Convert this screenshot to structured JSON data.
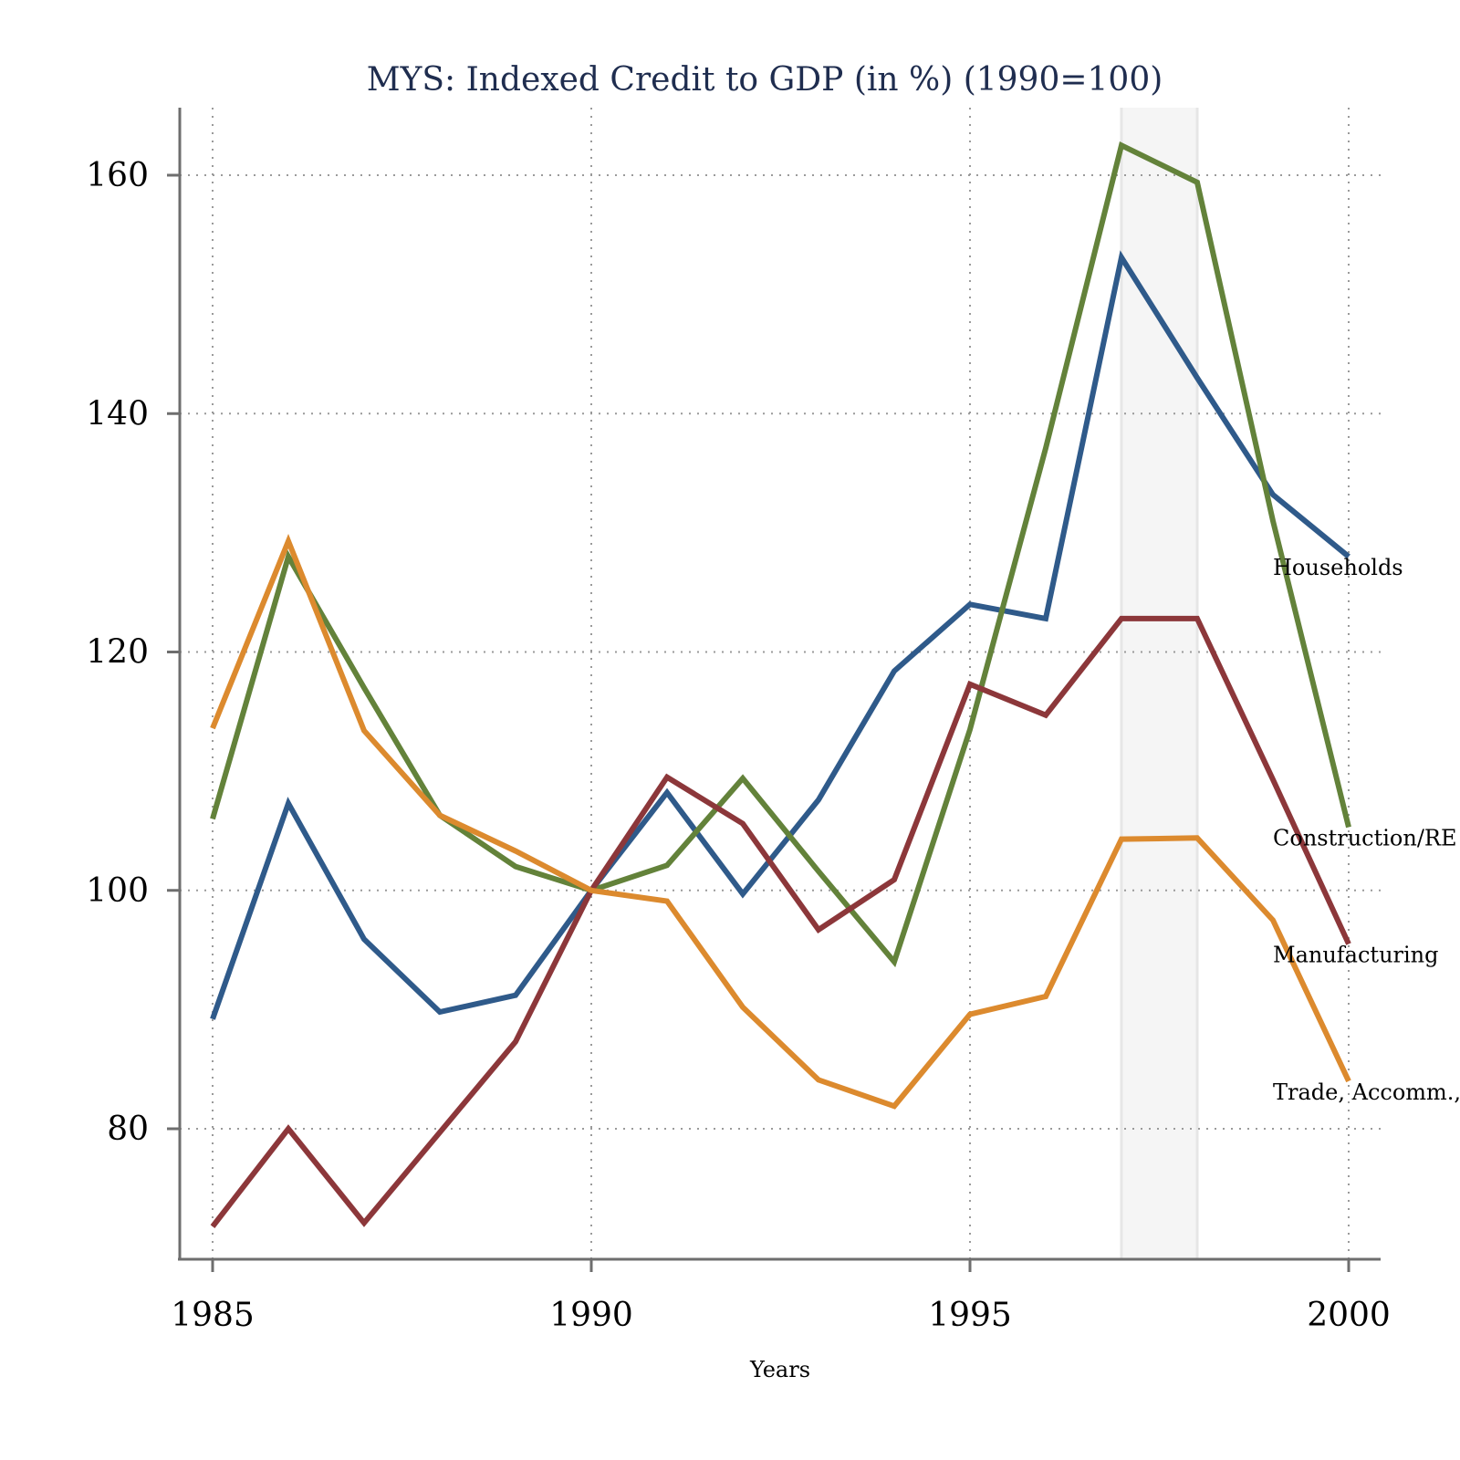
{
  "chart_data": {
    "type": "line",
    "title": "MYS: Indexed Credit to GDP (in %) (1990=100)",
    "xlabel": "Years",
    "ylabel": "",
    "xlim": [
      1984.58,
      2000.4
    ],
    "ylim": [
      68.9,
      165.1
    ],
    "x_ticks": [
      1985,
      1990,
      1995,
      2000
    ],
    "y_ticks": [
      80,
      100,
      120,
      140,
      160
    ],
    "grid": true,
    "shaded_region": {
      "x_start": 1997,
      "x_end": 1998,
      "color": "#f5f5f5",
      "edge_color": "#e6e6e6"
    },
    "x": [
      1985,
      1986,
      1987,
      1988,
      1989,
      1990,
      1991,
      1992,
      1993,
      1994,
      1995,
      1996,
      1997,
      1998,
      1999,
      2000
    ],
    "series": [
      {
        "name": "Households",
        "color": "#2f5a8a",
        "values": [
          89.2,
          107.3,
          95.9,
          89.8,
          91.2,
          100.0,
          108.2,
          99.7,
          107.6,
          118.4,
          124.0,
          122.8,
          153.1,
          143.0,
          133.2,
          128.0
        ]
      },
      {
        "name": "Construction/RE",
        "color": "#63823a",
        "values": [
          106.0,
          128.0,
          117.0,
          106.3,
          102.0,
          100.0,
          102.1,
          109.4,
          101.6,
          94.0,
          113.5,
          137.1,
          162.5,
          159.4,
          131.0,
          105.3
        ]
      },
      {
        "name": "Manufacturing",
        "color": "#8c373a",
        "values": [
          71.8,
          80.0,
          72.1,
          79.7,
          87.3,
          100.0,
          109.5,
          105.6,
          96.7,
          100.9,
          117.3,
          114.7,
          122.8,
          122.8,
          109.3,
          95.5
        ]
      },
      {
        "name": "Trade, Accomm., Food",
        "color": "#dc8a2e",
        "values": [
          113.6,
          129.3,
          113.4,
          106.3,
          103.3,
          100.0,
          99.1,
          90.2,
          84.1,
          81.9,
          89.6,
          91.1,
          104.3,
          104.4,
          97.5,
          84.0
        ]
      }
    ]
  }
}
